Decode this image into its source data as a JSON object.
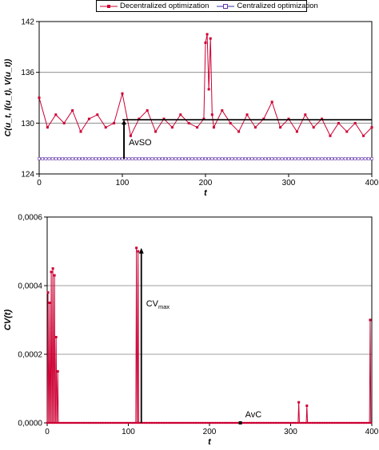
{
  "legend": {
    "decentralized": "Decentralized optimization",
    "centralized": "Centralized optimization"
  },
  "colors": {
    "decentralized": "#cc0033",
    "centralized": "#3333aa",
    "marker_centralized": "#6633aa",
    "annotation": "#000000",
    "grid": "#7f7f7f"
  },
  "chart_data": [
    {
      "type": "line",
      "ylabel": "C(u_t, l(u_t), V(u_t))",
      "xlabel": "t",
      "xlim": [
        0,
        400
      ],
      "ylim": [
        124,
        142
      ],
      "xticks": [
        "0",
        "100",
        "200",
        "300",
        "400"
      ],
      "yticks": [
        "124",
        "130",
        "136",
        "142"
      ],
      "grid": "horizontal",
      "series": [
        {
          "name": "Decentralized optimization",
          "x": [
            0,
            10,
            20,
            30,
            40,
            50,
            60,
            70,
            80,
            90,
            100,
            110,
            120,
            130,
            140,
            150,
            160,
            170,
            180,
            190,
            198,
            200,
            202,
            204,
            206,
            208,
            210,
            220,
            230,
            240,
            250,
            260,
            270,
            280,
            290,
            300,
            310,
            320,
            330,
            340,
            350,
            360,
            370,
            380,
            390,
            400
          ],
          "values": [
            133.0,
            129.5,
            131.0,
            130.0,
            131.5,
            129.0,
            130.5,
            131.0,
            129.5,
            130.0,
            133.5,
            128.5,
            130.5,
            131.5,
            129.0,
            130.5,
            129.5,
            131.0,
            130.0,
            129.5,
            130.5,
            139.5,
            140.5,
            134.0,
            140.0,
            131.0,
            129.5,
            131.5,
            130.0,
            129.0,
            131.0,
            129.5,
            130.5,
            132.5,
            129.5,
            130.5,
            129.0,
            131.0,
            129.5,
            130.5,
            128.5,
            130.0,
            129.0,
            130.0,
            128.5,
            129.5
          ]
        },
        {
          "name": "Centralized optimization",
          "x": [
            0,
            400
          ],
          "values": [
            125.8,
            125.8
          ]
        }
      ],
      "annotations": [
        {
          "text": "AvSO",
          "from_y": 125.8,
          "to_y": 130.4,
          "at_x": 102
        }
      ],
      "reference_line": {
        "value": 130.4,
        "from_x": 100,
        "to_x": 400
      }
    },
    {
      "type": "line",
      "ylabel": "CV(t)",
      "xlabel": "t",
      "xlim": [
        0,
        400
      ],
      "ylim": [
        0,
        0.0006
      ],
      "xticks": [
        "0",
        "100",
        "200",
        "300",
        "400"
      ],
      "yticks": [
        "0,0000",
        "0,0002",
        "0,0004",
        "0,0006"
      ],
      "grid": "horizontal",
      "series": [
        {
          "name": "",
          "spikes": [
            {
              "x": 1,
              "value": 0.00038
            },
            {
              "x": 3,
              "value": 0.00035
            },
            {
              "x": 5,
              "value": 0.00044
            },
            {
              "x": 7,
              "value": 0.00045
            },
            {
              "x": 9,
              "value": 0.00043
            },
            {
              "x": 11,
              "value": 0.00025
            },
            {
              "x": 13,
              "value": 0.00015
            },
            {
              "x": 110,
              "value": 0.00051
            },
            {
              "x": 112,
              "value": 0.0005
            },
            {
              "x": 310,
              "value": 6e-05
            },
            {
              "x": 320,
              "value": 5e-05
            },
            {
              "x": 398,
              "value": 0.0003
            }
          ],
          "baseline": 0.0
        }
      ],
      "annotations": [
        {
          "text": "CV",
          "subscript": "max",
          "at_x": 116,
          "from_y": 0.0,
          "to_y": 0.00051
        },
        {
          "text": "AvC",
          "at_x": 238,
          "value": 0.0
        }
      ]
    }
  ]
}
